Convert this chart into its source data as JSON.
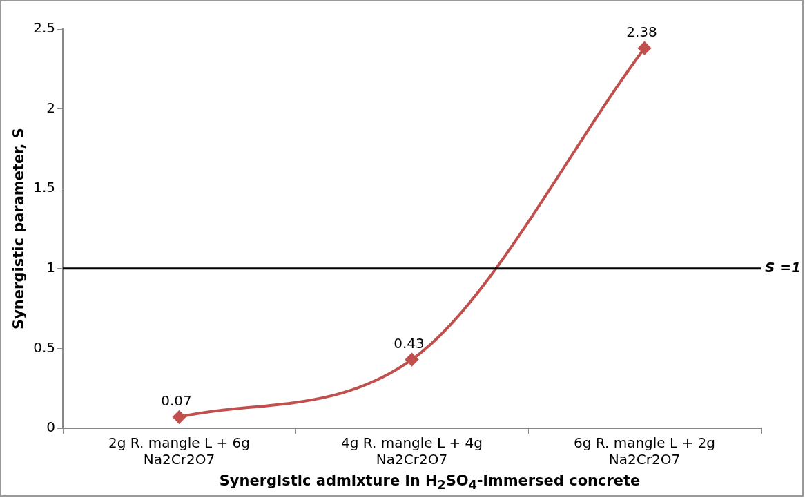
{
  "chart_data": {
    "type": "line",
    "xlabel": "Synergistic admixture in H$_{2}$SO$_{4}$-immersed concrete",
    "ylabel": "Synergistic parameter, S",
    "categories": [
      "2g R. mangle L + 6g Na2Cr2O7",
      "4g R. mangle L + 4g Na2Cr2O7",
      "6g R. mangle L + 2g Na2Cr2O7"
    ],
    "series": [
      {
        "color": "#c0504d",
        "values": [
          0.07,
          0.43,
          2.38
        ]
      }
    ],
    "ylim": [
      0,
      2.5
    ],
    "yticks": [
      0,
      0.5,
      1,
      1.5,
      2,
      2.5
    ],
    "grid": false,
    "legend": false,
    "marker": "diamond",
    "line_style": "solid",
    "data_labels": true,
    "ref_lines": [
      {
        "axis": "y",
        "value": 1,
        "label": "S =1",
        "color": "#000000"
      }
    ]
  }
}
